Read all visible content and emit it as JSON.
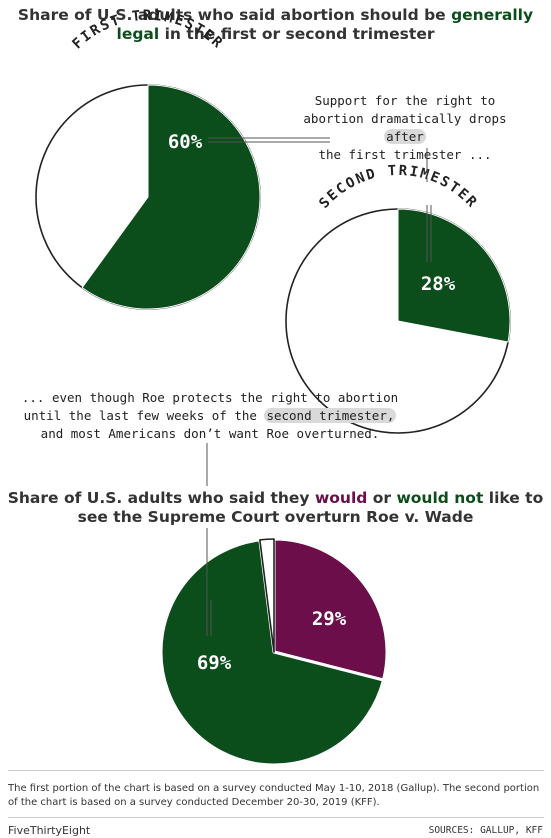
{
  "chart1": {
    "title_pre": "Share of U.S. adults who said abortion should be ",
    "title_em": "generally legal",
    "title_post": " in the first or second trimester"
  },
  "chart2": {
    "title_pre": "Share of U.S. adults who said they ",
    "title_em1": "would",
    "title_mid": " or ",
    "title_em2": "would not",
    "title_post": " like to see the Supreme Court overturn Roe v. Wade"
  },
  "annotations": {
    "a1_line1": "Support for the right to",
    "a1_line2_pre": "abortion dramatically drops ",
    "a1_line2_hi": "after",
    "a1_line3": "the first trimester ...",
    "a2_line1": "... even though Roe protects the right to abortion",
    "a2_line2_pre": "until the last few weeks of the ",
    "a2_line2_hi": "second trimester,",
    "a2_line3": "and most Americans don’t want Roe overturned."
  },
  "colors": {
    "green": "#0c4d1c",
    "purple": "#6b0e49",
    "highlight": "#d9d9d9"
  },
  "chart_data": [
    {
      "type": "pie",
      "title": "FIRST TRIMESTER",
      "slices": [
        {
          "name": "",
          "value": 60,
          "label": "60%"
        },
        {
          "name": "",
          "value": 40,
          "label": ""
        }
      ]
    },
    {
      "type": "pie",
      "title": "SECOND TRIMESTER",
      "slices": [
        {
          "name": "",
          "value": 28,
          "label": "28%"
        },
        {
          "name": "",
          "value": 72,
          "label": ""
        }
      ]
    },
    {
      "type": "pie",
      "title": "",
      "slices": [
        {
          "name": "would",
          "value": 29,
          "label": "29%"
        },
        {
          "name": "would not",
          "value": 69,
          "label": "69%"
        },
        {
          "name": "",
          "value": 2,
          "label": ""
        }
      ]
    }
  ],
  "footer": {
    "note": "The first portion of the chart is based on a survey conducted May 1-10, 2018 (Gallup). The second portion of the chart is based on a survey conducted December 20-30, 2019 (KFF).",
    "brand": "FiveThirtyEight",
    "sources": "SOURCES: GALLUP, KFF"
  }
}
